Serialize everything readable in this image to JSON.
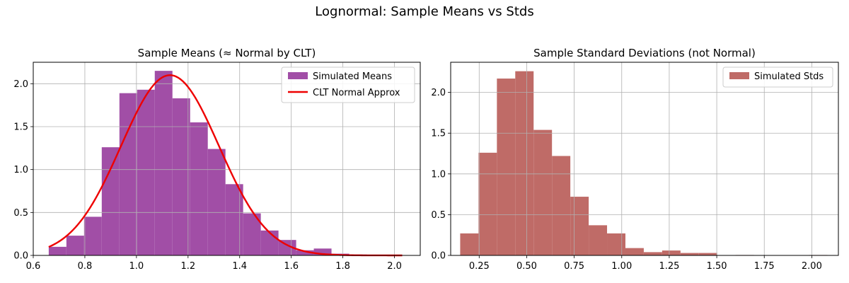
{
  "suptitle": "Lognormal: Sample Means vs Stds",
  "chart_data": [
    {
      "type": "bar",
      "title": "Sample Means (≈ Normal by CLT)",
      "xlabel": "",
      "ylabel": "",
      "xlim": [
        0.6,
        2.1
      ],
      "ylim": [
        0,
        2.25
      ],
      "xticks": [
        0.6,
        0.8,
        1.0,
        1.2,
        1.4,
        1.6,
        1.8,
        2.0
      ],
      "xtick_labels": [
        "0.6",
        "0.8",
        "1.0",
        "1.2",
        "1.4",
        "1.6",
        "1.8",
        "2.0"
      ],
      "yticks": [
        0,
        0.5,
        1.0,
        1.5,
        2.0
      ],
      "ytick_labels": [
        "0.0",
        "0.5",
        "1.0",
        "1.5",
        "2.0"
      ],
      "grid": true,
      "legend_position": "top-right",
      "legend": [
        "Simulated Means",
        "CLT Normal Approx"
      ],
      "histogram": {
        "name": "Simulated Means",
        "color": "#a14ea6",
        "bin_start": 0.66,
        "bin_width": 0.0685,
        "values": [
          0.1,
          0.23,
          0.45,
          1.26,
          1.89,
          1.93,
          2.15,
          1.83,
          1.55,
          1.24,
          0.83,
          0.49,
          0.29,
          0.18,
          0.06,
          0.08,
          0.02,
          0.01,
          0.0,
          0.005
        ]
      },
      "curve": {
        "name": "CLT Normal Approx",
        "color": "#ee0000",
        "mean": 1.13,
        "std": 0.19,
        "x_range": [
          0.66,
          2.03
        ]
      }
    },
    {
      "type": "bar",
      "title": "Sample Standard Deviations (not Normal)",
      "xlabel": "",
      "ylabel": "",
      "xlim": [
        0.1,
        2.14
      ],
      "ylim": [
        0,
        2.37
      ],
      "xticks": [
        0.25,
        0.5,
        0.75,
        1.0,
        1.25,
        1.5,
        1.75,
        2.0
      ],
      "xtick_labels": [
        "0.25",
        "0.50",
        "0.75",
        "1.00",
        "1.25",
        "1.50",
        "1.75",
        "2.00"
      ],
      "yticks": [
        0,
        0.5,
        1.0,
        1.5,
        2.0
      ],
      "ytick_labels": [
        "0.0",
        "0.5",
        "1.0",
        "1.5",
        "2.0"
      ],
      "grid": true,
      "legend_position": "top-right",
      "legend": [
        "Simulated Stds"
      ],
      "histogram": {
        "name": "Simulated Stds",
        "color": "#bf6b67",
        "bin_start": 0.15,
        "bin_width": 0.0966,
        "values": [
          0.27,
          1.26,
          2.17,
          2.26,
          1.54,
          1.22,
          0.72,
          0.37,
          0.27,
          0.09,
          0.04,
          0.06,
          0.03,
          0.03,
          0.0,
          0.005,
          0.0,
          0.0,
          0.0,
          0.005
        ]
      }
    }
  ]
}
